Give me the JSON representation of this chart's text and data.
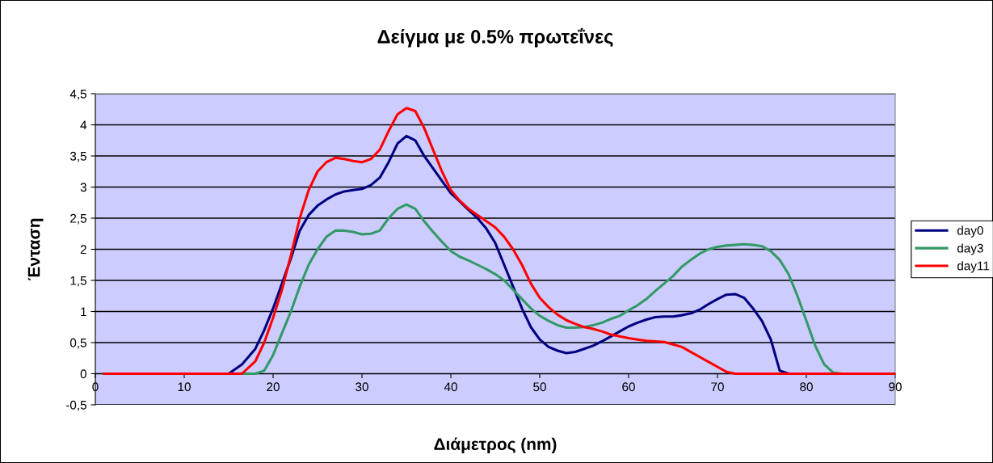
{
  "chart_data": {
    "type": "line",
    "title": "Δείγμα με 0.5% πρωτεΐνες",
    "xlabel": "Διάμετρος (nm)",
    "ylabel": "Ένταση",
    "x": [
      1,
      15,
      16.5,
      18,
      19,
      20,
      21,
      22,
      23,
      24,
      25,
      26,
      27,
      28,
      29,
      30,
      31,
      32,
      33,
      34,
      35,
      36,
      37,
      38,
      39,
      40,
      41,
      42,
      43,
      44,
      45,
      46,
      47,
      48,
      49,
      50,
      51,
      52,
      53,
      54,
      55,
      56,
      57,
      58,
      59,
      60,
      61,
      62,
      63,
      64,
      65,
      66,
      67,
      68,
      69,
      70,
      71,
      72,
      73,
      74,
      75,
      76,
      77,
      78,
      79,
      80,
      81,
      82,
      83,
      84,
      90
    ],
    "series": [
      {
        "name": "day0",
        "color": "#000080",
        "values": [
          0,
          0,
          0.15,
          0.4,
          0.7,
          1.05,
          1.45,
          1.85,
          2.3,
          2.55,
          2.7,
          2.8,
          2.88,
          2.93,
          2.95,
          2.97,
          3.03,
          3.15,
          3.4,
          3.7,
          3.82,
          3.75,
          3.5,
          3.3,
          3.1,
          2.9,
          2.77,
          2.63,
          2.5,
          2.33,
          2.1,
          1.75,
          1.4,
          1.05,
          0.75,
          0.55,
          0.43,
          0.37,
          0.33,
          0.35,
          0.4,
          0.45,
          0.52,
          0.6,
          0.68,
          0.76,
          0.82,
          0.87,
          0.91,
          0.92,
          0.92,
          0.94,
          0.97,
          1.03,
          1.12,
          1.2,
          1.27,
          1.28,
          1.22,
          1.05,
          0.85,
          0.55,
          0.05,
          0,
          0,
          null,
          null,
          null,
          null,
          null,
          null
        ]
      },
      {
        "name": "day3",
        "color": "#339966",
        "values": [
          0,
          0,
          0,
          0,
          0.05,
          0.3,
          0.65,
          1.0,
          1.4,
          1.75,
          2.0,
          2.2,
          2.3,
          2.3,
          2.28,
          2.24,
          2.25,
          2.3,
          2.5,
          2.65,
          2.72,
          2.65,
          2.45,
          2.28,
          2.12,
          1.97,
          1.88,
          1.82,
          1.75,
          1.68,
          1.6,
          1.5,
          1.35,
          1.2,
          1.05,
          0.93,
          0.85,
          0.78,
          0.74,
          0.74,
          0.75,
          0.78,
          0.82,
          0.88,
          0.93,
          1.02,
          1.1,
          1.2,
          1.33,
          1.45,
          1.57,
          1.72,
          1.83,
          1.93,
          2.0,
          2.04,
          2.06,
          2.07,
          2.08,
          2.07,
          2.05,
          1.97,
          1.83,
          1.6,
          1.25,
          0.85,
          0.45,
          0.15,
          0.02,
          0,
          0
        ]
      },
      {
        "name": "day11",
        "color": "#ff0000",
        "values": [
          0,
          0,
          0,
          0.2,
          0.5,
          0.9,
          1.35,
          1.9,
          2.5,
          2.95,
          3.25,
          3.4,
          3.47,
          3.45,
          3.42,
          3.4,
          3.45,
          3.6,
          3.9,
          4.17,
          4.27,
          4.22,
          3.95,
          3.6,
          3.25,
          2.95,
          2.78,
          2.65,
          2.55,
          2.45,
          2.35,
          2.2,
          2.0,
          1.75,
          1.45,
          1.22,
          1.07,
          0.95,
          0.86,
          0.8,
          0.75,
          0.72,
          0.68,
          0.63,
          0.6,
          0.57,
          0.55,
          0.53,
          0.52,
          0.51,
          0.47,
          0.43,
          0.35,
          0.27,
          0.19,
          0.11,
          0.03,
          0,
          0,
          0,
          0,
          0,
          0,
          0,
          0,
          0,
          0,
          0,
          0,
          0,
          0
        ]
      }
    ],
    "xlim": [
      0,
      90
    ],
    "xticks": [
      0,
      10,
      20,
      30,
      40,
      50,
      60,
      70,
      80,
      90
    ],
    "ylim": [
      -0.5,
      4.5
    ],
    "yticks": [
      {
        "value": -0.5,
        "label": "-0,5"
      },
      0,
      {
        "value": 0.5,
        "label": "0,5"
      },
      1,
      {
        "value": 1.5,
        "label": "1,5"
      },
      2,
      {
        "value": 2.5,
        "label": "2,5"
      },
      3,
      {
        "value": 3.5,
        "label": "3,5"
      },
      4,
      {
        "value": 4.5,
        "label": "4,5"
      }
    ],
    "grid": "y",
    "legend": "right",
    "marker": "none",
    "line_style": "solid"
  }
}
